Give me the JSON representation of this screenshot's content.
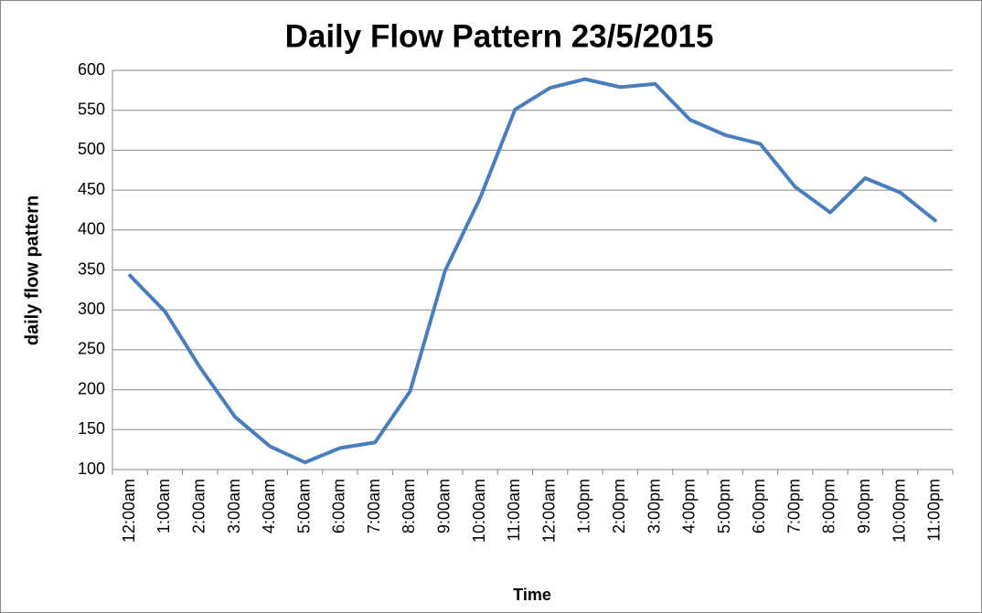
{
  "chart_data": {
    "type": "line",
    "title": "Daily Flow Pattern 23/5/2015",
    "x_label": "Time",
    "y_label": "daily flow pattern",
    "categories": [
      "12:00am",
      "1:00am",
      "2:00am",
      "3:00am",
      "4:00am",
      "5:00am",
      "6:00am",
      "7:00am",
      "8:00am",
      "9:00am",
      "10:00am",
      "11:00am",
      "12:00am",
      "1:00pm",
      "2:00pm",
      "3:00pm",
      "4:00pm",
      "5:00pm",
      "6:00pm",
      "7:00pm",
      "8:00pm",
      "9:00pm",
      "10:00pm",
      "11:00pm"
    ],
    "series": [
      {
        "name": "daily flow pattern",
        "color": "#4a7ebb",
        "values": [
          343,
          298,
          228,
          166,
          129,
          109,
          127,
          134,
          198,
          349,
          440,
          551,
          578,
          589,
          579,
          583,
          538,
          519,
          508,
          454,
          422,
          465,
          447,
          412
        ]
      }
    ],
    "ylim": [
      100,
      600
    ],
    "yticks": [
      100,
      150,
      200,
      250,
      300,
      350,
      400,
      450,
      500,
      550,
      600
    ],
    "grid": true
  }
}
